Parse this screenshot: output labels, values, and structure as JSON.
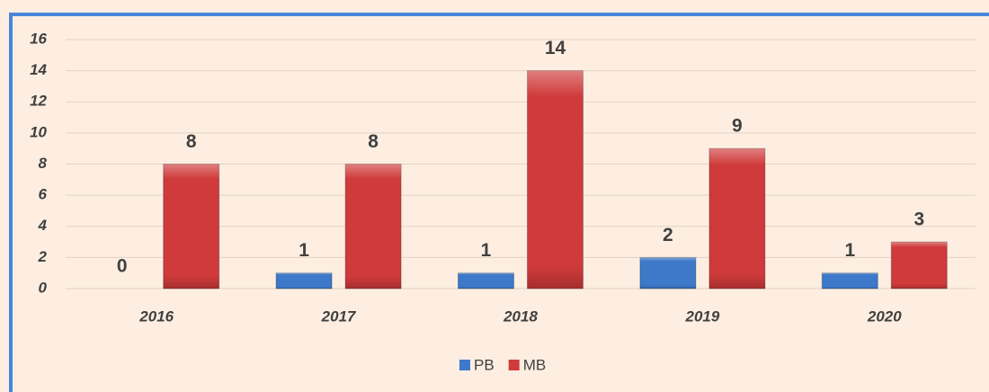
{
  "chart_data": {
    "type": "bar",
    "categories": [
      "2016",
      "2017",
      "2018",
      "2019",
      "2020"
    ],
    "series": [
      {
        "name": "PB",
        "color": "#3d78c9",
        "values": [
          0,
          1,
          1,
          2,
          1
        ]
      },
      {
        "name": "MB",
        "color": "#cf3a3a",
        "values": [
          8,
          8,
          14,
          9,
          3
        ]
      }
    ],
    "ylim": [
      0,
      16
    ],
    "yticks": [
      0,
      2,
      4,
      6,
      8,
      10,
      12,
      14,
      16
    ],
    "grid": true,
    "legend": "bottom"
  }
}
